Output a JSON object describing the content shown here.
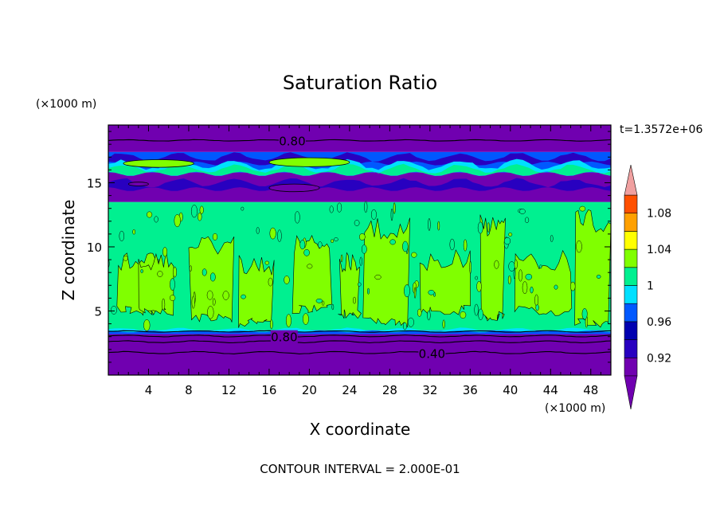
{
  "chart_data": {
    "type": "heatmap",
    "title": "Saturation Ratio",
    "xlabel": "X coordinate",
    "ylabel": "Z coordinate",
    "x_units": "(×1000 m)",
    "y_units": "(×1000 m)",
    "time_label": "t=1.3572e+06",
    "footer": "CONTOUR INTERVAL = 2.000E-01",
    "xlim": [
      0,
      50
    ],
    "ylim": [
      0,
      19.5
    ],
    "x_ticks": [
      4,
      8,
      12,
      16,
      20,
      24,
      28,
      32,
      36,
      40,
      44,
      48
    ],
    "y_ticks": [
      5,
      10,
      15
    ],
    "grid": false,
    "colorbar": {
      "placement": "right",
      "levels": [
        0.9,
        0.92,
        0.94,
        0.96,
        0.98,
        1.0,
        1.02,
        1.04,
        1.06,
        1.08,
        1.1
      ],
      "tick_labels": [
        "0.92",
        "0.96",
        "1",
        "1.04",
        "1.08"
      ],
      "tick_values": [
        0.92,
        0.96,
        1.0,
        1.04,
        1.08
      ],
      "colors": [
        "#7000b0",
        "#2800c0",
        "#0000b0",
        "#0058ff",
        "#00e0ff",
        "#00f090",
        "#80ff00",
        "#ffff00",
        "#ffa000",
        "#ff5000",
        "#ff2020"
      ],
      "over_color": "#f0a0a0",
      "under_color": "#7000b0"
    },
    "contour_labels": [
      {
        "text": "0.80",
        "x": 18.3,
        "z": 18.3
      },
      {
        "text": "0.80",
        "x": 17.5,
        "z": 3.0
      },
      {
        "text": "0.40",
        "x": 32.2,
        "z": 1.7
      }
    ],
    "layers": [
      {
        "z_bottom": 0,
        "z_top": 3.2,
        "saturation_ratio": 0.4,
        "color": "#7000b0"
      },
      {
        "z_bottom": 3.2,
        "z_top": 3.5,
        "saturation_ratio": 0.95,
        "color": "#0058ff"
      },
      {
        "z_bottom": 3.5,
        "z_top": 13.5,
        "saturation_ratio": 1.0,
        "color": "#00f090"
      },
      {
        "z_bottom": 13.5,
        "z_top": 15.8,
        "saturation_ratio": 0.85,
        "color": "#7000b0"
      },
      {
        "z_bottom": 15.8,
        "z_top": 17.4,
        "saturation_ratio": 0.95,
        "color": "#0058ff"
      },
      {
        "z_bottom": 17.4,
        "z_top": 19.5,
        "saturation_ratio": 0.8,
        "color": "#7000b0"
      }
    ],
    "supersaturated_regions_z_range": [
      3.5,
      13.5
    ],
    "supersaturated_color": "#80ff00"
  }
}
